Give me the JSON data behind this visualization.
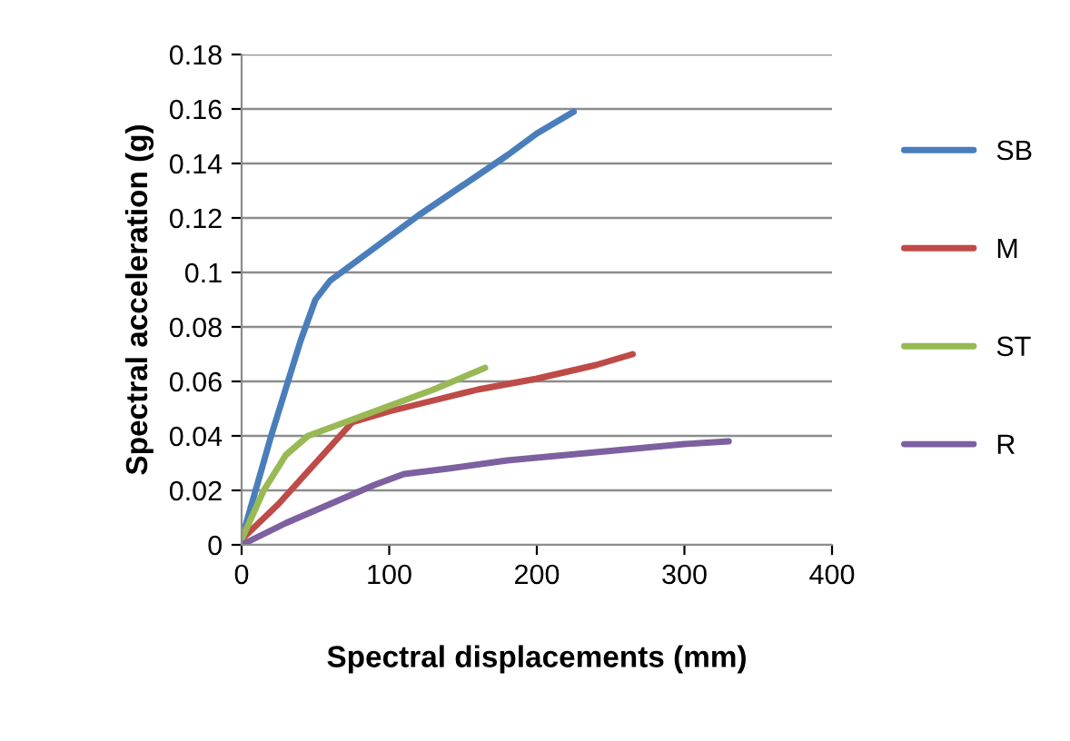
{
  "chart_data": {
    "type": "line",
    "xlabel": "Spectral displacements (mm)",
    "ylabel": "Spectral acceleration (g)",
    "xlim": [
      0,
      400
    ],
    "xticks": [
      0,
      100,
      200,
      300,
      400
    ],
    "ylim": [
      0,
      0.18
    ],
    "yticks": [
      0,
      0.02,
      0.04,
      0.06,
      0.08,
      0.1,
      0.12,
      0.14,
      0.16,
      0.18
    ],
    "grid": "y",
    "legend": "right",
    "marker": "none",
    "line_style": "solid",
    "series": [
      {
        "name": "SB",
        "color": "#4a7ebb",
        "x": [
          0,
          20,
          40,
          50,
          60,
          80,
          100,
          120,
          150,
          180,
          200,
          225
        ],
        "values": [
          0.002,
          0.04,
          0.075,
          0.09,
          0.097,
          0.105,
          0.113,
          0.121,
          0.132,
          0.143,
          0.151,
          0.159
        ]
      },
      {
        "name": "M",
        "color": "#be4b48",
        "x": [
          0,
          25,
          50,
          75,
          100,
          130,
          160,
          200,
          240,
          265
        ],
        "values": [
          0.002,
          0.015,
          0.03,
          0.045,
          0.049,
          0.053,
          0.057,
          0.061,
          0.066,
          0.07
        ]
      },
      {
        "name": "ST",
        "color": "#98b954",
        "x": [
          0,
          15,
          30,
          45,
          70,
          100,
          130,
          165
        ],
        "values": [
          0.002,
          0.02,
          0.033,
          0.04,
          0.045,
          0.051,
          0.057,
          0.065
        ]
      },
      {
        "name": "R",
        "color": "#7d60a0",
        "x": [
          0,
          30,
          60,
          90,
          110,
          140,
          180,
          220,
          260,
          300,
          330
        ],
        "values": [
          0,
          0.008,
          0.015,
          0.022,
          0.026,
          0.028,
          0.031,
          0.033,
          0.035,
          0.037,
          0.038
        ]
      }
    ]
  }
}
